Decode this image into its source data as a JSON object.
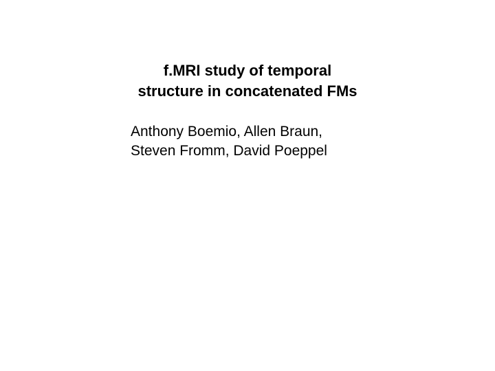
{
  "slide": {
    "title_line1": "f.MRI study of temporal",
    "title_line2": "structure in concatenated FMs",
    "authors_line1": "Anthony Boemio, Allen Braun,",
    "authors_line2": "Steven Fromm, David Poeppel",
    "background_color": "#ffffff",
    "text_color": "#000000",
    "title_fontsize": 22,
    "title_fontweight": "bold",
    "authors_fontsize": 21,
    "authors_fontweight": "normal",
    "font_family": "Arial, Helvetica, sans-serif"
  }
}
